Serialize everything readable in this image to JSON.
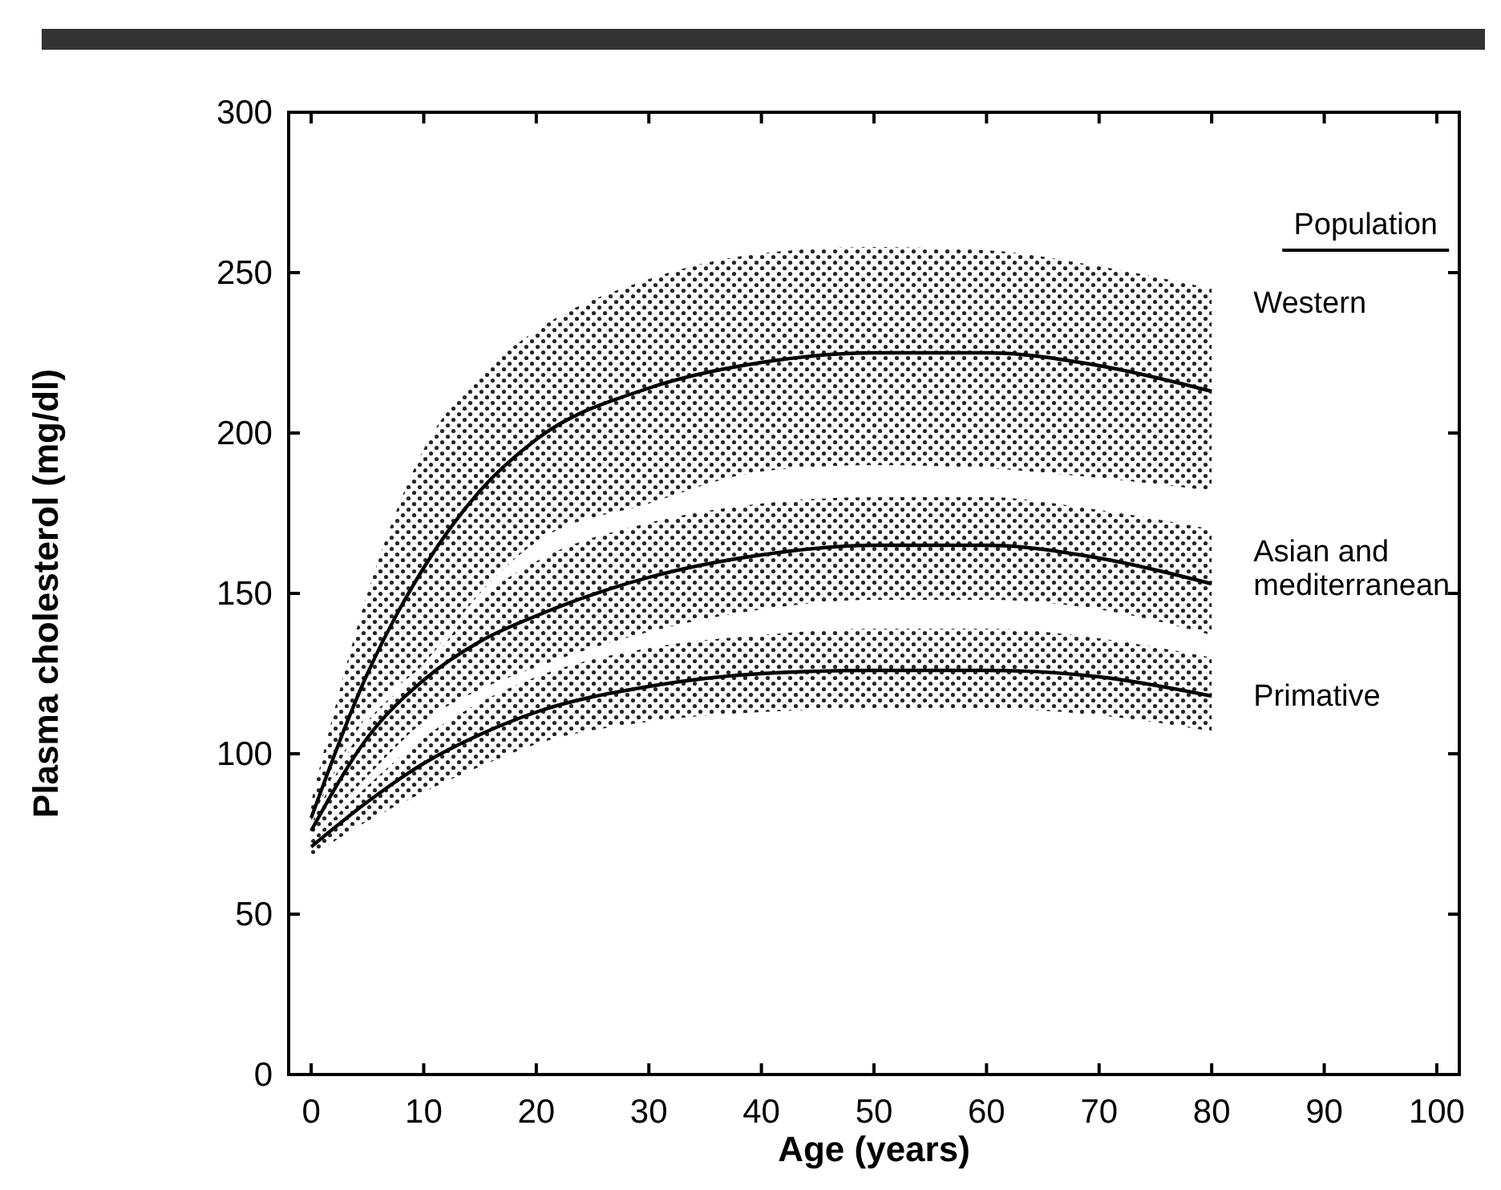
{
  "chart_data": {
    "type": "line",
    "xlabel": "Age (years)",
    "ylabel": "Plasma cholesterol (mg/dl)",
    "legend_title": "Population",
    "legend": "right",
    "xlim": [
      -2,
      102
    ],
    "ylim": [
      0,
      300
    ],
    "xticks": [
      0,
      10,
      20,
      30,
      40,
      50,
      60,
      70,
      80,
      90,
      100
    ],
    "yticks": [
      0,
      50,
      100,
      150,
      200,
      250,
      300
    ],
    "grid": false,
    "marker": "none",
    "line_style": "solid",
    "x": [
      0,
      5,
      10,
      15,
      20,
      30,
      40,
      50,
      60,
      70,
      80
    ],
    "series": [
      {
        "name": "Western",
        "color": "#000000",
        "values": [
          80,
          125,
          158,
          182,
          198,
          214,
          222,
          225,
          225,
          221,
          213
        ],
        "lower": [
          79,
          112,
          128,
          150,
          166,
          178,
          188,
          190,
          189,
          186,
          182
        ],
        "upper": [
          85,
          150,
          195,
          218,
          232,
          248,
          256,
          258,
          257,
          252,
          245
        ]
      },
      {
        "name": "Asian and mediterranean",
        "color": "#000000",
        "values": [
          76,
          105,
          123,
          135,
          143,
          155,
          162,
          165,
          165,
          161,
          153
        ],
        "lower": [
          74,
          93,
          110,
          120,
          127,
          138,
          145,
          148,
          148,
          145,
          137
        ],
        "upper": [
          78,
          110,
          126,
          148,
          160,
          172,
          178,
          180,
          180,
          176,
          170
        ]
      },
      {
        "name": "Primative",
        "color": "#000000",
        "values": [
          71,
          85,
          97,
          106,
          113,
          121,
          125,
          126,
          126,
          124,
          118
        ],
        "lower": [
          68,
          79,
          88,
          96,
          103,
          110,
          113,
          114,
          114,
          112,
          107
        ],
        "upper": [
          73,
          90,
          105,
          116,
          124,
          133,
          137,
          139,
          139,
          136,
          130
        ]
      }
    ]
  }
}
